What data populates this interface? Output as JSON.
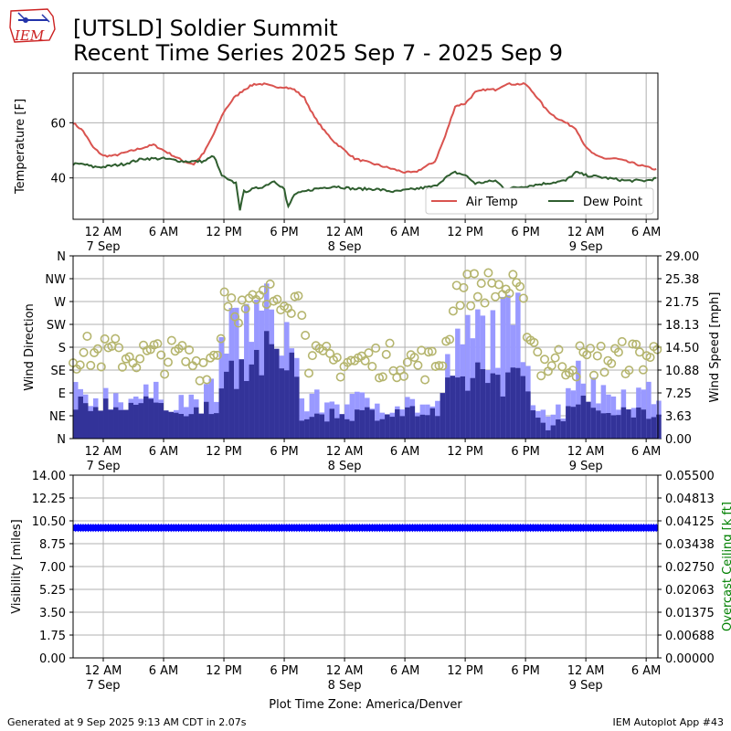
{
  "header": {
    "title_line1": "[UTSLD] Soldier Summit",
    "title_line2": "Recent Time Series 2025 Sep 7 - 2025 Sep 9",
    "logo_text": "IEM"
  },
  "footer": {
    "generated": "Generated at 9 Sep 2025 9:13 AM CDT in 2.07s",
    "app": "IEM Autoplot App #43",
    "timezone": "Plot Time Zone: America/Denver"
  },
  "colors": {
    "air_temp": "#d9534f",
    "dew_point": "#2f5e2f",
    "gust_bar": "#9999ff",
    "speed_bar": "#333399",
    "wind_dir": "#b5b56e",
    "visibility": "#0000ff",
    "ceiling_axis": "#008000",
    "grid": "#b0b0b0"
  },
  "x_axis": {
    "start": "2025-09-06 21:00",
    "end": "2025-09-09 07:10",
    "ticks": [
      {
        "time": "2025-09-07 00:00",
        "label": "12 AM",
        "date": "7 Sep"
      },
      {
        "time": "2025-09-07 06:00",
        "label": "6 AM",
        "date": ""
      },
      {
        "time": "2025-09-07 12:00",
        "label": "12 PM",
        "date": ""
      },
      {
        "time": "2025-09-07 18:00",
        "label": "6 PM",
        "date": ""
      },
      {
        "time": "2025-09-08 00:00",
        "label": "12 AM",
        "date": "8 Sep"
      },
      {
        "time": "2025-09-08 06:00",
        "label": "6 AM",
        "date": ""
      },
      {
        "time": "2025-09-08 12:00",
        "label": "12 PM",
        "date": ""
      },
      {
        "time": "2025-09-08 18:00",
        "label": "6 PM",
        "date": ""
      },
      {
        "time": "2025-09-09 00:00",
        "label": "12 AM",
        "date": "9 Sep"
      },
      {
        "time": "2025-09-09 06:00",
        "label": "6 AM",
        "date": ""
      }
    ]
  },
  "chart_data": [
    {
      "type": "line",
      "ylabel": "Temperature [F]",
      "ylim": [
        25,
        78
      ],
      "yticks": [
        40,
        60
      ],
      "grid": true,
      "legend": "lower-right",
      "series": [
        {
          "name": "Air Temp",
          "points": [
            [
              "2025-09-06 21:00",
              60
            ],
            [
              "2025-09-06 22:00",
              57
            ],
            [
              "2025-09-06 23:00",
              51
            ],
            [
              "2025-09-07 00:00",
              48
            ],
            [
              "2025-09-07 01:00",
              48
            ],
            [
              "2025-09-07 02:00",
              49
            ],
            [
              "2025-09-07 03:00",
              50
            ],
            [
              "2025-09-07 04:00",
              51
            ],
            [
              "2025-09-07 05:00",
              52
            ],
            [
              "2025-09-07 06:00",
              50
            ],
            [
              "2025-09-07 07:00",
              48
            ],
            [
              "2025-09-07 08:00",
              46
            ],
            [
              "2025-09-07 09:00",
              45
            ],
            [
              "2025-09-07 10:00",
              49
            ],
            [
              "2025-09-07 11:00",
              56
            ],
            [
              "2025-09-07 12:00",
              64
            ],
            [
              "2025-09-07 13:00",
              69
            ],
            [
              "2025-09-07 14:00",
              72
            ],
            [
              "2025-09-07 15:00",
              74
            ],
            [
              "2025-09-07 16:00",
              74
            ],
            [
              "2025-09-07 17:00",
              73
            ],
            [
              "2025-09-07 18:00",
              73
            ],
            [
              "2025-09-07 19:00",
              72
            ],
            [
              "2025-09-07 20:00",
              69
            ],
            [
              "2025-09-07 21:00",
              62
            ],
            [
              "2025-09-07 22:00",
              57
            ],
            [
              "2025-09-07 23:00",
              53
            ],
            [
              "2025-09-08 00:00",
              50
            ],
            [
              "2025-09-08 01:00",
              47
            ],
            [
              "2025-09-08 02:00",
              46
            ],
            [
              "2025-09-08 03:00",
              45
            ],
            [
              "2025-09-08 04:00",
              44
            ],
            [
              "2025-09-08 05:00",
              43
            ],
            [
              "2025-09-08 06:00",
              42
            ],
            [
              "2025-09-08 07:00",
              42
            ],
            [
              "2025-09-08 08:00",
              44
            ],
            [
              "2025-09-08 09:00",
              46
            ],
            [
              "2025-09-08 10:00",
              55
            ],
            [
              "2025-09-08 11:00",
              66
            ],
            [
              "2025-09-08 12:00",
              67
            ],
            [
              "2025-09-08 13:00",
              71
            ],
            [
              "2025-09-08 14:00",
              72
            ],
            [
              "2025-09-08 15:00",
              72
            ],
            [
              "2025-09-08 16:00",
              74
            ],
            [
              "2025-09-08 17:00",
              74
            ],
            [
              "2025-09-08 18:00",
              74
            ],
            [
              "2025-09-08 19:00",
              70
            ],
            [
              "2025-09-08 20:00",
              65
            ],
            [
              "2025-09-08 21:00",
              62
            ],
            [
              "2025-09-08 22:00",
              60
            ],
            [
              "2025-09-08 23:00",
              58
            ],
            [
              "2025-09-09 00:00",
              51
            ],
            [
              "2025-09-09 01:00",
              48
            ],
            [
              "2025-09-09 02:00",
              47
            ],
            [
              "2025-09-09 03:00",
              47
            ],
            [
              "2025-09-09 04:00",
              46
            ],
            [
              "2025-09-09 05:00",
              45
            ],
            [
              "2025-09-09 06:00",
              44
            ],
            [
              "2025-09-09 07:00",
              43
            ],
            [
              "2025-09-09 07:10",
              44
            ]
          ]
        },
        {
          "name": "Dew Point",
          "points": [
            [
              "2025-09-06 21:00",
              45
            ],
            [
              "2025-09-06 22:00",
              45
            ],
            [
              "2025-09-06 23:00",
              44
            ],
            [
              "2025-09-07 00:00",
              44
            ],
            [
              "2025-09-07 02:00",
              45
            ],
            [
              "2025-09-07 04:00",
              47
            ],
            [
              "2025-09-07 06:00",
              47
            ],
            [
              "2025-09-07 08:00",
              46
            ],
            [
              "2025-09-07 10:00",
              46
            ],
            [
              "2025-09-07 11:00",
              48
            ],
            [
              "2025-09-07 11:45",
              41
            ],
            [
              "2025-09-07 12:30",
              39
            ],
            [
              "2025-09-07 13:20",
              38
            ],
            [
              "2025-09-07 13:30",
              27
            ],
            [
              "2025-09-07 14:00",
              35
            ],
            [
              "2025-09-07 15:00",
              36
            ],
            [
              "2025-09-07 16:00",
              37
            ],
            [
              "2025-09-07 17:00",
              39
            ],
            [
              "2025-09-07 18:00",
              36
            ],
            [
              "2025-09-07 18:20",
              29
            ],
            [
              "2025-09-07 19:00",
              34
            ],
            [
              "2025-09-07 21:00",
              36
            ],
            [
              "2025-09-07 23:00",
              37
            ],
            [
              "2025-09-08 01:00",
              36
            ],
            [
              "2025-09-08 03:00",
              36
            ],
            [
              "2025-09-08 05:00",
              35
            ],
            [
              "2025-09-08 07:00",
              36
            ],
            [
              "2025-09-08 09:00",
              37
            ],
            [
              "2025-09-08 10:00",
              40
            ],
            [
              "2025-09-08 11:00",
              42
            ],
            [
              "2025-09-08 12:00",
              41
            ],
            [
              "2025-09-08 13:00",
              38
            ],
            [
              "2025-09-08 15:00",
              39
            ],
            [
              "2025-09-08 16:00",
              36
            ],
            [
              "2025-09-08 18:00",
              37
            ],
            [
              "2025-09-08 20:00",
              38
            ],
            [
              "2025-09-08 22:00",
              39
            ],
            [
              "2025-09-08 23:00",
              42
            ],
            [
              "2025-09-09 00:00",
              41
            ],
            [
              "2025-09-09 02:00",
              40
            ],
            [
              "2025-09-09 04:00",
              39
            ],
            [
              "2025-09-09 06:00",
              39
            ],
            [
              "2025-09-09 07:10",
              40
            ]
          ]
        }
      ]
    },
    {
      "type": "bar",
      "ylabel": "Wind Direction",
      "y2label": "Wind Speed [mph]",
      "dir_ticks": [
        "N",
        "NE",
        "E",
        "SE",
        "S",
        "SW",
        "W",
        "NW",
        "N"
      ],
      "ylim": [
        0,
        29
      ],
      "y2ticks": [
        "0.00",
        "3.63",
        "7.25",
        "10.88",
        "14.50",
        "18.13",
        "21.75",
        "25.38",
        "29.00"
      ],
      "grid": true,
      "speed_profile": [
        [
          "2025-09-06 21:00",
          5.5
        ],
        [
          "2025-09-07 06:00",
          5.5
        ],
        [
          "2025-09-07 09:00",
          4.5
        ],
        [
          "2025-09-07 11:00",
          6
        ],
        [
          "2025-09-07 12:00",
          11
        ],
        [
          "2025-09-07 14:00",
          13
        ],
        [
          "2025-09-07 17:00",
          14
        ],
        [
          "2025-09-07 19:00",
          10
        ],
        [
          "2025-09-07 19:30",
          4
        ],
        [
          "2025-09-08 06:00",
          4.5
        ],
        [
          "2025-09-08 09:00",
          4
        ],
        [
          "2025-09-08 10:00",
          8
        ],
        [
          "2025-09-08 13:00",
          11
        ],
        [
          "2025-09-08 16:00",
          10
        ],
        [
          "2025-09-08 17:30",
          9
        ],
        [
          "2025-09-08 18:30",
          5
        ],
        [
          "2025-09-08 20:00",
          2
        ],
        [
          "2025-09-08 21:30",
          3
        ],
        [
          "2025-09-08 22:30",
          7
        ],
        [
          "2025-09-08 23:00",
          8
        ],
        [
          "2025-09-09 00:00",
          5
        ],
        [
          "2025-09-09 07:10",
          4.5
        ]
      ],
      "gust_profile": [
        [
          "2025-09-06 21:00",
          7
        ],
        [
          "2025-09-07 06:00",
          7
        ],
        [
          "2025-09-07 09:00",
          6
        ],
        [
          "2025-09-07 11:00",
          8
        ],
        [
          "2025-09-07 12:00",
          17
        ],
        [
          "2025-09-07 14:00",
          19
        ],
        [
          "2025-09-07 17:00",
          20
        ],
        [
          "2025-09-07 19:00",
          14
        ],
        [
          "2025-09-07 19:30",
          6
        ],
        [
          "2025-09-08 06:00",
          6
        ],
        [
          "2025-09-08 09:00",
          5
        ],
        [
          "2025-09-08 10:00",
          12
        ],
        [
          "2025-09-08 13:00",
          18
        ],
        [
          "2025-09-08 16:00",
          18
        ],
        [
          "2025-09-08 17:30",
          19
        ],
        [
          "2025-09-08 18:30",
          8
        ],
        [
          "2025-09-08 20:00",
          4
        ],
        [
          "2025-09-08 21:30",
          5
        ],
        [
          "2025-09-08 22:30",
          11
        ],
        [
          "2025-09-08 23:00",
          14
        ],
        [
          "2025-09-09 00:00",
          8
        ],
        [
          "2025-09-09 07:10",
          7
        ]
      ],
      "direction_deg_profile": [
        [
          "2025-09-06 21:00",
          170
        ],
        [
          "2025-09-07 08:00",
          160
        ],
        [
          "2025-09-07 10:00",
          145
        ],
        [
          "2025-09-07 11:30",
          175
        ],
        [
          "2025-09-07 12:00",
          290
        ],
        [
          "2025-09-07 14:00",
          250
        ],
        [
          "2025-09-07 16:00",
          270
        ],
        [
          "2025-09-07 18:00",
          290
        ],
        [
          "2025-09-07 20:00",
          260
        ],
        [
          "2025-09-07 20:30",
          150
        ],
        [
          "2025-09-08 06:00",
          155
        ],
        [
          "2025-09-08 09:00",
          145
        ],
        [
          "2025-09-08 10:00",
          170
        ],
        [
          "2025-09-08 11:00",
          290
        ],
        [
          "2025-09-08 14:00",
          300
        ],
        [
          "2025-09-08 17:00",
          290
        ],
        [
          "2025-09-08 18:00",
          240
        ],
        [
          "2025-09-08 19:30",
          150
        ],
        [
          "2025-09-09 01:00",
          155
        ],
        [
          "2025-09-09 04:00",
          160
        ],
        [
          "2025-09-09 07:10",
          165
        ]
      ]
    },
    {
      "type": "bar",
      "ylabel": "Visibility [miles]",
      "y2label": "Overcast Ceiling [k ft]",
      "ylim": [
        0,
        14
      ],
      "yticks": [
        "0.00",
        "1.75",
        "3.50",
        "5.25",
        "7.00",
        "8.75",
        "10.50",
        "12.25",
        "14.00"
      ],
      "y2ticks": [
        "0.00000",
        "0.00688",
        "0.01375",
        "0.02063",
        "0.02750",
        "0.03438",
        "0.04125",
        "0.04813",
        "0.05500"
      ],
      "visibility_value": 10,
      "grid": true
    }
  ]
}
